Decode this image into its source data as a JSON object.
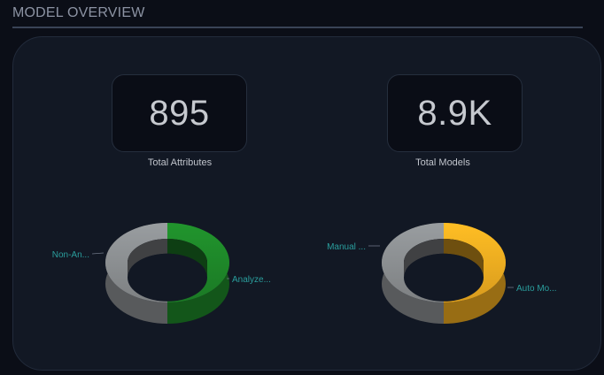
{
  "header": {
    "title": "MODEL OVERVIEW"
  },
  "kpis": [
    {
      "value": "895",
      "label": "Total Attributes"
    },
    {
      "value": "8.9K",
      "label": "Total Models"
    }
  ],
  "chart_data": [
    {
      "type": "pie",
      "style": "3d-donut",
      "slices": [
        {
          "label": "Analyze...",
          "value": 50,
          "color": "#1f8a2a"
        },
        {
          "label": "Non-An...",
          "value": 50,
          "color": "#8e9194"
        }
      ]
    },
    {
      "type": "pie",
      "style": "3d-donut",
      "slices": [
        {
          "label": "Auto Mo...",
          "value": 50,
          "color": "#f5b021"
        },
        {
          "label": "Manual ...",
          "value": 50,
          "color": "#8e9194"
        }
      ]
    }
  ]
}
